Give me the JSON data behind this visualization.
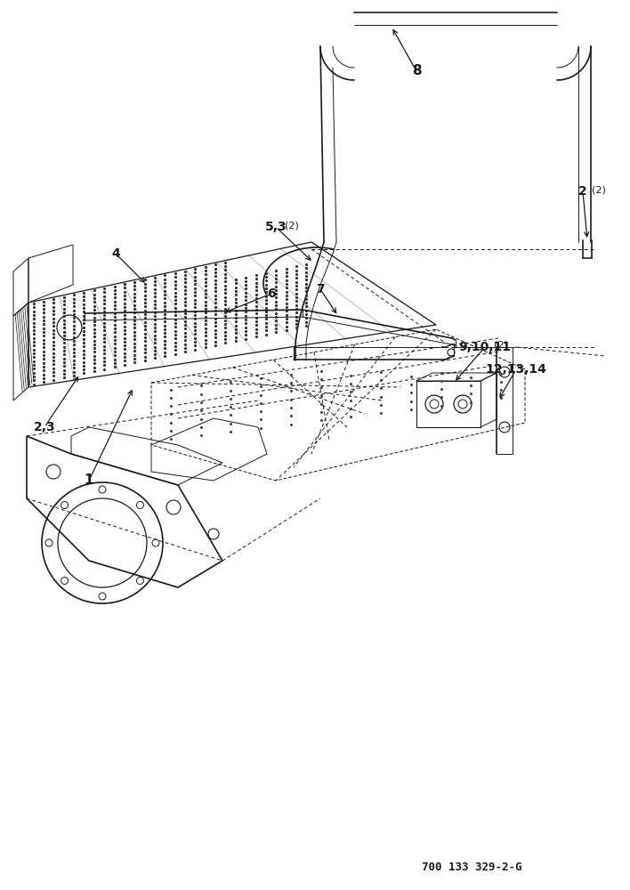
{
  "bg_color": "#ffffff",
  "lc": "#1a1a1a",
  "footer_text": "700 133 329-2-G",
  "figsize": [
    7.08,
    10.0
  ],
  "dpi": 100
}
